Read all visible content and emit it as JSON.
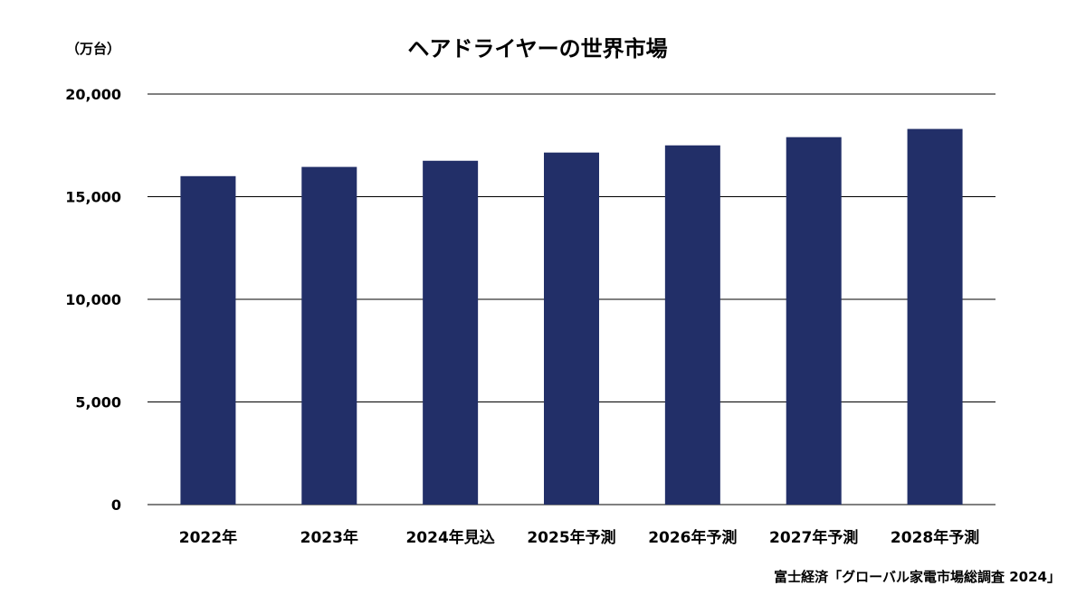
{
  "source_note": "富士経済「グローバル家電市場総調査 2024」",
  "chart_data": {
    "type": "bar",
    "title": "ヘアドライヤーの世界市場",
    "unit_label": "（万台）",
    "xlabel": "",
    "ylabel": "",
    "categories": [
      "2022年",
      "2023年",
      "2024年見込",
      "2025年予測",
      "2026年予測",
      "2027年予測",
      "2028年予測"
    ],
    "series": [
      {
        "values": [
          16000,
          16450,
          16750,
          17150,
          17500,
          17900,
          18300
        ]
      }
    ],
    "ylim": [
      0,
      20000
    ],
    "yticks": [
      0,
      5000,
      10000,
      15000,
      20000
    ],
    "ytick_labels": [
      "0",
      "5,000",
      "10,000",
      "15,000",
      "20,000"
    ],
    "grid": true,
    "legend": "none",
    "bar_color": "#222F68",
    "gridline_color": "#000000"
  }
}
